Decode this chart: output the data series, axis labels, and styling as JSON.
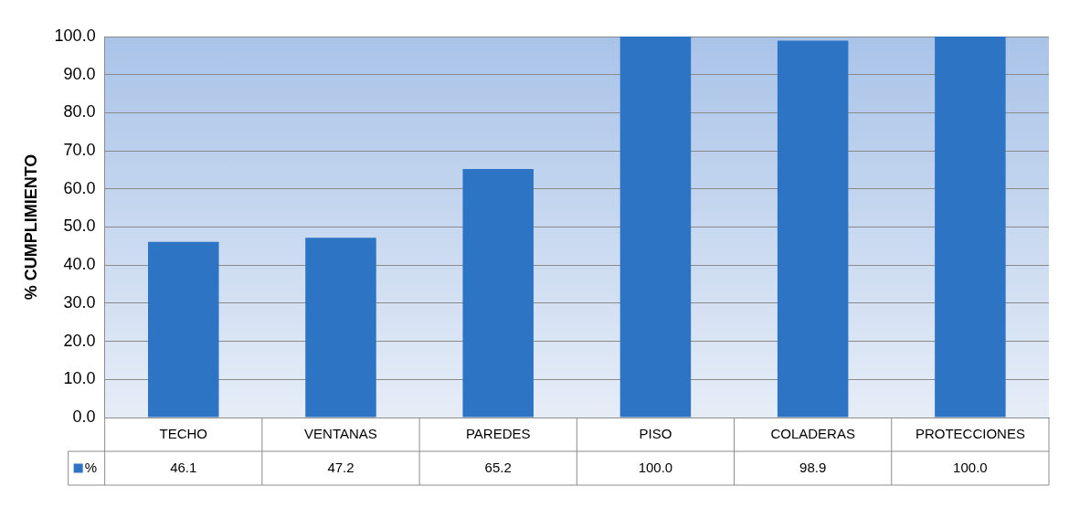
{
  "chart_data": {
    "type": "bar",
    "ylabel": "% CUMPLIMIENTO",
    "categories": [
      "TECHO",
      "VENTANAS",
      "PAREDES",
      "PISO",
      "COLADERAS",
      "PROTECCIONES"
    ],
    "series": [
      {
        "name": "%",
        "color": "#2e74c4",
        "values": [
          46.1,
          47.2,
          65.2,
          100.0,
          98.9,
          100.0
        ],
        "value_labels": [
          "46.1",
          "47.2",
          "65.2",
          "100.0",
          "98.9",
          "100.0"
        ]
      }
    ],
    "ylim": [
      0,
      100
    ],
    "yticks": [
      {
        "value": 0,
        "label": "0.0"
      },
      {
        "value": 10,
        "label": "10.0"
      },
      {
        "value": 20,
        "label": "20.0"
      },
      {
        "value": 30,
        "label": "30.0"
      },
      {
        "value": 40,
        "label": "40.0"
      },
      {
        "value": 50,
        "label": "50.0"
      },
      {
        "value": 60,
        "label": "60.0"
      },
      {
        "value": 70,
        "label": "70.0"
      },
      {
        "value": 80,
        "label": "80.0"
      },
      {
        "value": 90,
        "label": "90.0"
      },
      {
        "value": 100,
        "label": "100.0"
      }
    ],
    "grid": "y",
    "legend": "bottom left"
  }
}
